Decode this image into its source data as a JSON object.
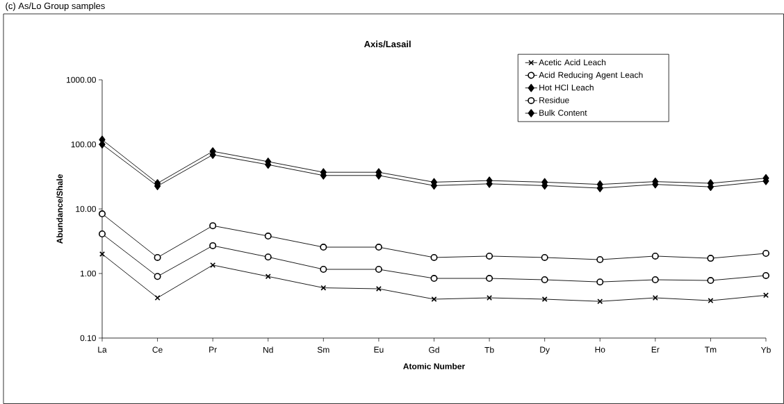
{
  "chart_data": {
    "type": "line",
    "title": "Axis/Lasail",
    "xlabel": "Atomic Number",
    "ylabel": "Abundance/Shale",
    "annotations": [
      "(c) As/Lo Group samples"
    ],
    "categories": [
      "La",
      "Ce",
      "Pr",
      "Nd",
      "Sm",
      "Eu",
      "Gd",
      "Tb",
      "Dy",
      "Ho",
      "Er",
      "Tm",
      "Yb"
    ],
    "log": "y",
    "ylim": [
      0.1,
      1000
    ],
    "yticks": [
      {
        "value": 0.1,
        "label": "0.10"
      },
      {
        "value": 1,
        "label": "1.00"
      },
      {
        "value": 10,
        "label": "10.00"
      },
      {
        "value": 100,
        "label": "100.00"
      },
      {
        "value": 1000,
        "label": "1000.00"
      }
    ],
    "grid": false,
    "legend": "top right",
    "line_style": "solid",
    "series": [
      {
        "name": "Acetic Acid Leach",
        "color": "#000000",
        "marker": "cross",
        "values": [
          2.0,
          0.42,
          1.35,
          0.9,
          0.6,
          0.58,
          0.4,
          0.42,
          0.4,
          0.37,
          0.42,
          0.38,
          0.46
        ]
      },
      {
        "name": "Acid Reducing Agent Leach",
        "color": "#000000",
        "marker": "circle",
        "values": [
          4.1,
          0.9,
          2.7,
          1.8,
          1.16,
          1.16,
          0.84,
          0.84,
          0.8,
          0.74,
          0.8,
          0.78,
          0.93
        ]
      },
      {
        "name": "Hot HCl Leach",
        "color": "#000000",
        "marker": "diamond",
        "values": [
          100,
          22.6,
          69,
          48.5,
          33,
          33,
          23,
          24.5,
          23,
          21,
          24,
          22,
          27
        ]
      },
      {
        "name": "Residue",
        "color": "#000000",
        "marker": "circle",
        "values": [
          8.4,
          1.77,
          5.5,
          3.8,
          2.56,
          2.56,
          1.77,
          1.86,
          1.77,
          1.64,
          1.86,
          1.72,
          2.05
        ]
      },
      {
        "name": "Bulk Content",
        "color": "#000000",
        "marker": "diamond",
        "values": [
          118,
          25,
          78,
          54,
          37,
          37,
          26,
          27.5,
          26,
          24,
          26.5,
          25,
          30
        ]
      }
    ]
  }
}
